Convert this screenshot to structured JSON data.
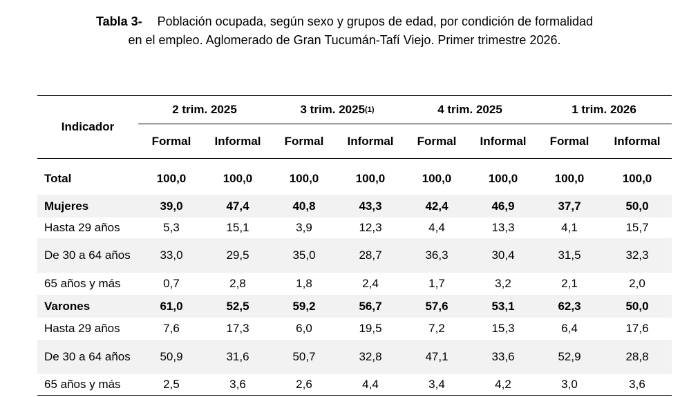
{
  "title": {
    "label": "Tabla 3-",
    "line1": "Población ocupada, según sexo y grupos de edad, por condición de formalidad",
    "line2": "en el empleo. Aglomerado de Gran Tucumán-Tafí Viejo. Primer trimestre 2026."
  },
  "header": {
    "indicator": "Indicador",
    "periods": [
      {
        "label": "2 trim. 2025",
        "note": ""
      },
      {
        "label": "3 trim. 2025",
        "note": "(1)"
      },
      {
        "label": "4 trim. 2025",
        "note": ""
      },
      {
        "label": "1 trim. 2026",
        "note": ""
      }
    ],
    "formal": "Formal",
    "informal": "Informal"
  },
  "rows": [
    {
      "label": "Total",
      "bold": true,
      "shaded": false,
      "values": [
        "100,0",
        "100,0",
        "100,0",
        "100,0",
        "100,0",
        "100,0",
        "100,0",
        "100,0"
      ]
    },
    {
      "label": "Mujeres",
      "bold": true,
      "shaded": true,
      "values": [
        "39,0",
        "47,4",
        "40,8",
        "43,3",
        "42,4",
        "46,9",
        "37,7",
        "50,0"
      ]
    },
    {
      "label": "Hasta 29 años",
      "bold": false,
      "shaded": false,
      "values": [
        "5,3",
        "15,1",
        "3,9",
        "12,3",
        "4,4",
        "13,3",
        "4,1",
        "15,7"
      ]
    },
    {
      "label": "De 30 a 64 años",
      "bold": false,
      "shaded": true,
      "values": [
        "33,0",
        "29,5",
        "35,0",
        "28,7",
        "36,3",
        "30,4",
        "31,5",
        "32,3"
      ]
    },
    {
      "label": "65 años y más",
      "bold": false,
      "shaded": false,
      "values": [
        "0,7",
        "2,8",
        "1,8",
        "2,4",
        "1,7",
        "3,2",
        "2,1",
        "2,0"
      ]
    },
    {
      "label": "Varones",
      "bold": true,
      "shaded": true,
      "values": [
        "61,0",
        "52,5",
        "59,2",
        "56,7",
        "57,6",
        "53,1",
        "62,3",
        "50,0"
      ]
    },
    {
      "label": "Hasta 29 años",
      "bold": false,
      "shaded": false,
      "values": [
        "7,6",
        "17,3",
        "6,0",
        "19,5",
        "7,2",
        "15,3",
        "6,4",
        "17,6"
      ]
    },
    {
      "label": "De 30 a 64 años",
      "bold": false,
      "shaded": true,
      "values": [
        "50,9",
        "31,6",
        "50,7",
        "32,8",
        "47,1",
        "33,6",
        "52,9",
        "28,8"
      ]
    },
    {
      "label": "65 años y más",
      "bold": false,
      "shaded": false,
      "values": [
        "2,5",
        "3,6",
        "2,6",
        "4,4",
        "3,4",
        "4,2",
        "3,0",
        "3,6"
      ]
    }
  ]
}
